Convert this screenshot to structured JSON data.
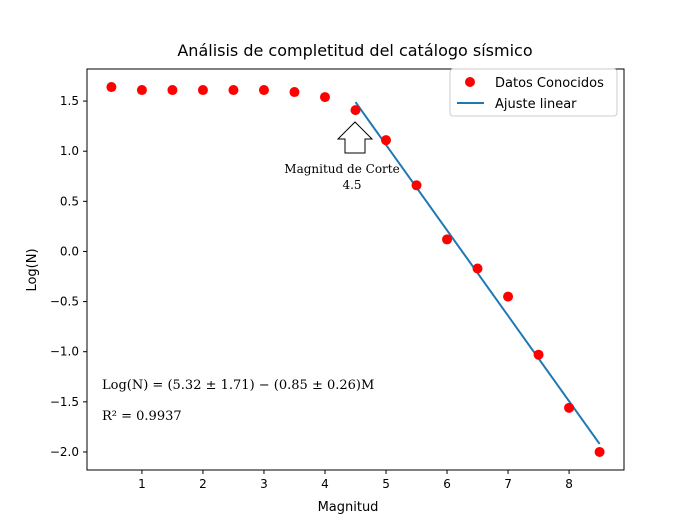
{
  "chart_data": {
    "type": "scatter",
    "title": "Análisis de completitud del catálogo sísmico",
    "xlabel": "Magnitud",
    "ylabel": "Log(N)",
    "xlim": [
      0.1,
      8.9
    ],
    "ylim": [
      -2.18,
      1.82
    ],
    "xticks": [
      1,
      2,
      3,
      4,
      5,
      6,
      7,
      8
    ],
    "xtick_labels": [
      "1",
      "2",
      "3",
      "4",
      "5",
      "6",
      "7",
      "8"
    ],
    "yticks": [
      -2.0,
      -1.5,
      -1.0,
      -0.5,
      0.0,
      0.5,
      1.0,
      1.5
    ],
    "ytick_labels": [
      "−2.0",
      "−1.5",
      "−1.0",
      "−0.5",
      "0.0",
      "0.5",
      "1.0",
      "1.5"
    ],
    "grid": false,
    "legend_position": "top-right",
    "series": [
      {
        "name": "Datos Conocidos",
        "kind": "scatter",
        "color": "#ff0000",
        "x": [
          0.5,
          1.0,
          1.5,
          2.0,
          2.5,
          3.0,
          3.5,
          4.0,
          4.5,
          5.0,
          5.5,
          6.0,
          6.5,
          7.0,
          7.5,
          8.0,
          8.5
        ],
        "y": [
          1.64,
          1.61,
          1.61,
          1.61,
          1.61,
          1.61,
          1.59,
          1.54,
          1.41,
          1.11,
          0.66,
          0.12,
          -0.17,
          -0.45,
          -1.03,
          -1.56,
          -2.0
        ]
      },
      {
        "name": "Ajuste linear",
        "kind": "line",
        "color": "#1f77b4",
        "x": [
          4.5,
          8.5
        ],
        "y": [
          1.49,
          -1.92
        ]
      }
    ],
    "annotations": {
      "cutoff_label": "Magnitud de Corte",
      "cutoff_value": "4.5",
      "cutoff_x": 4.5,
      "equation": "Log(N) = (5.32 ± 1.71) − (0.85 ± 0.26)M",
      "r_squared": "R² = 0.9937"
    }
  }
}
